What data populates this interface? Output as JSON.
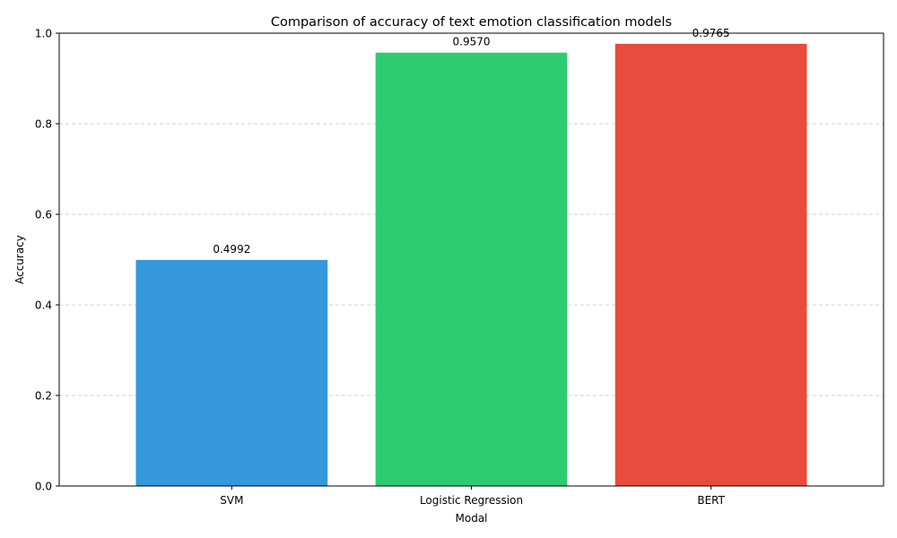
{
  "chart_data": {
    "type": "bar",
    "title": "Comparison of accuracy of text emotion classification models",
    "xlabel": "Modal",
    "ylabel": "Accuracy",
    "categories": [
      "SVM",
      "Logistic Regression",
      "BERT"
    ],
    "values": [
      0.4992,
      0.957,
      0.9765
    ],
    "value_labels": [
      "0.4992",
      "0.9570",
      "0.9765"
    ],
    "colors": [
      "#3498db",
      "#2ecc71",
      "#e74c3c"
    ],
    "ylim": [
      0,
      1.0
    ],
    "yticks": [
      0.0,
      0.2,
      0.4,
      0.6,
      0.8,
      1.0
    ],
    "ytick_labels": [
      "0.0",
      "0.2",
      "0.4",
      "0.6",
      "0.8",
      "1.0"
    ],
    "grid": "y-dashed",
    "legend": "none"
  }
}
